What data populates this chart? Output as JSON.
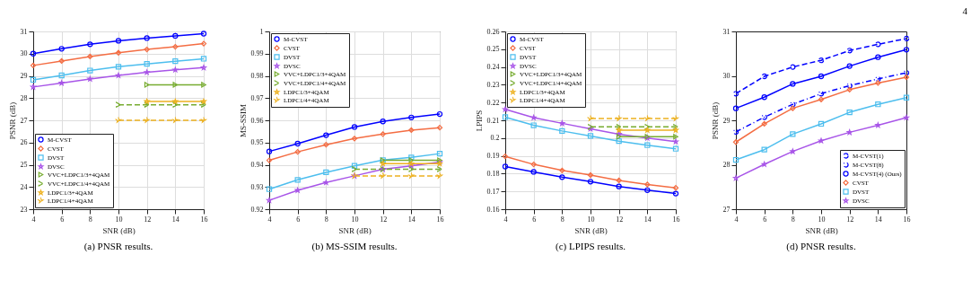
{
  "chart_data": [
    {
      "type": "line",
      "title": "(a) PNSR results.",
      "xlabel": "SNR (dB)",
      "ylabel": "PSNR (dB)",
      "x": [
        4,
        6,
        8,
        10,
        12,
        14,
        16
      ],
      "xlim": [
        4,
        16
      ],
      "xticks": [
        4,
        6,
        8,
        10,
        12,
        14,
        16
      ],
      "ylim": [
        23,
        31
      ],
      "yticks": [
        23,
        24,
        25,
        26,
        27,
        28,
        29,
        30,
        31
      ],
      "grid": true,
      "legend": "bottom left",
      "series": [
        {
          "name": "M-CVST",
          "color": "#0000ff",
          "marker": "circle",
          "line_style": "solid",
          "values": [
            30.0,
            30.22,
            30.42,
            30.58,
            30.7,
            30.8,
            30.9
          ]
        },
        {
          "name": "CVST",
          "color": "#f46d43",
          "marker": "diamond",
          "line_style": "solid",
          "values": [
            29.47,
            29.67,
            29.87,
            30.04,
            30.19,
            30.31,
            30.45
          ]
        },
        {
          "name": "DVST",
          "color": "#4dbeee",
          "marker": "square",
          "line_style": "solid",
          "values": [
            28.82,
            29.02,
            29.24,
            29.41,
            29.54,
            29.66,
            29.77
          ]
        },
        {
          "name": "DVSC",
          "color": "#a855e8",
          "marker": "star",
          "line_style": "solid",
          "values": [
            28.5,
            28.68,
            28.86,
            29.02,
            29.16,
            29.27,
            29.37
          ]
        },
        {
          "name": "VVC+LDPC1/3+4QAM",
          "color": "#77ac30",
          "marker": "triangle",
          "line_style": "solid",
          "values": [
            null,
            null,
            null,
            null,
            28.6,
            28.6,
            28.6
          ]
        },
        {
          "name": "VVC+LDPC1/4+4QAM",
          "color": "#77ac30",
          "marker": "triangle",
          "line_style": "dashed",
          "values": [
            null,
            null,
            null,
            27.7,
            27.7,
            27.7,
            27.7
          ]
        },
        {
          "name": "LDPC1/3+4QAM",
          "color": "#edb120",
          "marker": "star",
          "line_style": "solid",
          "values": [
            null,
            null,
            null,
            null,
            27.85,
            27.85,
            27.85
          ]
        },
        {
          "name": "LDPC1/4+4QAM",
          "color": "#edb120",
          "marker": "star",
          "line_style": "dashed",
          "values": [
            null,
            null,
            null,
            27.0,
            27.0,
            27.0,
            27.0
          ]
        }
      ]
    },
    {
      "type": "line",
      "title": "(b) MS-SSIM results.",
      "xlabel": "SNR (dB)",
      "ylabel": "MS-SSIM",
      "x": [
        4,
        6,
        8,
        10,
        12,
        14,
        16
      ],
      "xlim": [
        4,
        16
      ],
      "xticks": [
        4,
        6,
        8,
        10,
        12,
        14,
        16
      ],
      "ylim": [
        0.92,
        1
      ],
      "yticks": [
        0.92,
        0.93,
        0.94,
        0.95,
        0.96,
        0.97,
        0.98,
        0.99,
        1
      ],
      "grid": true,
      "legend": "top left",
      "series": [
        {
          "name": "M-CVST",
          "color": "#0000ff",
          "marker": "circle",
          "line_style": "solid",
          "values": [
            0.946,
            0.9495,
            0.9533,
            0.957,
            0.9595,
            0.9613,
            0.9628
          ]
        },
        {
          "name": "CVST",
          "color": "#f46d43",
          "marker": "diamond",
          "line_style": "solid",
          "values": [
            0.942,
            0.9458,
            0.949,
            0.9518,
            0.9538,
            0.9556,
            0.9567
          ]
        },
        {
          "name": "DVST",
          "color": "#4dbeee",
          "marker": "square",
          "line_style": "solid",
          "values": [
            0.929,
            0.9332,
            0.9366,
            0.9395,
            0.9421,
            0.9433,
            0.945
          ]
        },
        {
          "name": "DVSC",
          "color": "#a855e8",
          "marker": "star",
          "line_style": "solid",
          "values": [
            0.924,
            0.9285,
            0.932,
            0.935,
            0.938,
            0.9395,
            0.9412
          ]
        },
        {
          "name": "VVC+LDPC1/3+4QAM",
          "color": "#77ac30",
          "marker": "triangle",
          "line_style": "solid",
          "values": [
            null,
            null,
            null,
            null,
            0.942,
            0.942,
            0.942
          ]
        },
        {
          "name": "VVC+LDPC1/4+4QAM",
          "color": "#77ac30",
          "marker": "triangle",
          "line_style": "dashed",
          "values": [
            null,
            null,
            null,
            0.938,
            0.938,
            0.938,
            0.938
          ]
        },
        {
          "name": "LDPC1/3+4QAM",
          "color": "#edb120",
          "marker": "star",
          "line_style": "solid",
          "values": [
            null,
            null,
            null,
            null,
            0.9405,
            0.9405,
            0.9405
          ]
        },
        {
          "name": "LDPC1/4+4QAM",
          "color": "#edb120",
          "marker": "star",
          "line_style": "dashed",
          "values": [
            null,
            null,
            null,
            0.935,
            0.935,
            0.935,
            0.935
          ]
        }
      ]
    },
    {
      "type": "line",
      "title": "(c) LPIPS results.",
      "xlabel": "SNR (dB)",
      "ylabel": "LPIPS",
      "x": [
        4,
        6,
        8,
        10,
        12,
        14,
        16
      ],
      "xlim": [
        4,
        16
      ],
      "xticks": [
        4,
        6,
        8,
        10,
        12,
        14,
        16
      ],
      "ylim": [
        0.16,
        0.26
      ],
      "yticks": [
        0.16,
        0.17,
        0.18,
        0.19,
        0.2,
        0.21,
        0.22,
        0.23,
        0.24,
        0.25,
        0.26
      ],
      "grid": true,
      "legend": "top left",
      "series": [
        {
          "name": "M-CVST",
          "color": "#0000ff",
          "marker": "circle",
          "line_style": "solid",
          "values": [
            0.184,
            0.181,
            0.178,
            0.1755,
            0.1728,
            0.1707,
            0.1688
          ]
        },
        {
          "name": "CVST",
          "color": "#f46d43",
          "marker": "diamond",
          "line_style": "solid",
          "values": [
            0.1897,
            0.1852,
            0.1818,
            0.1792,
            0.1762,
            0.1739,
            0.172
          ]
        },
        {
          "name": "DVST",
          "color": "#4dbeee",
          "marker": "square",
          "line_style": "solid",
          "values": [
            0.2118,
            0.2072,
            0.204,
            0.2012,
            0.1983,
            0.196,
            0.194
          ]
        },
        {
          "name": "DVSC",
          "color": "#a855e8",
          "marker": "star",
          "line_style": "solid",
          "values": [
            0.2162,
            0.2115,
            0.2083,
            0.2052,
            0.2022,
            0.2,
            0.198
          ]
        },
        {
          "name": "VVC+LDPC1/3+4QAM",
          "color": "#77ac30",
          "marker": "triangle",
          "line_style": "solid",
          "values": [
            null,
            null,
            null,
            null,
            0.2008,
            0.2008,
            0.2008
          ]
        },
        {
          "name": "VVC+LDPC1/4+4QAM",
          "color": "#77ac30",
          "marker": "triangle",
          "line_style": "dashed",
          "values": [
            null,
            null,
            null,
            0.2063,
            0.2063,
            0.2063,
            0.2063
          ]
        },
        {
          "name": "LDPC1/3+4QAM",
          "color": "#edb120",
          "marker": "star",
          "line_style": "solid",
          "values": [
            null,
            null,
            null,
            null,
            0.2045,
            0.2045,
            0.2045
          ]
        },
        {
          "name": "LDPC1/4+4QAM",
          "color": "#edb120",
          "marker": "star",
          "line_style": "dashed",
          "values": [
            null,
            null,
            null,
            0.211,
            0.211,
            0.211,
            0.211
          ]
        }
      ]
    },
    {
      "type": "line",
      "title": "(d) PNSR results.",
      "xlabel": "SNR (dB)",
      "ylabel": "PSNR (dB)",
      "x": [
        4,
        6,
        8,
        10,
        12,
        14,
        16
      ],
      "xlim": [
        4,
        16
      ],
      "xticks": [
        4,
        6,
        8,
        10,
        12,
        14,
        16
      ],
      "ylim": [
        27,
        31
      ],
      "yticks": [
        27,
        28,
        29,
        30,
        31
      ],
      "grid": false,
      "legend": "bottom right",
      "annotations": [
        "4"
      ],
      "series": [
        {
          "name": "M-CVST(1)",
          "color": "#0000ff",
          "marker": "circle",
          "line_style": "dashed",
          "values": [
            29.6,
            29.99,
            30.2,
            30.35,
            30.57,
            30.71,
            30.84
          ]
        },
        {
          "name": "M-CVST(8)",
          "color": "#0000ff",
          "marker": "circle",
          "line_style": "dashdot",
          "values": [
            28.74,
            29.07,
            29.36,
            29.6,
            29.78,
            29.93,
            30.07
          ]
        },
        {
          "name": "M-CVST(4) (Ours)",
          "color": "#0000ff",
          "marker": "circle",
          "line_style": "solid",
          "values": [
            29.27,
            29.52,
            29.82,
            29.99,
            30.22,
            30.42,
            30.59
          ]
        },
        {
          "name": "CVST",
          "color": "#f46d43",
          "marker": "diamond",
          "line_style": "solid",
          "values": [
            28.51,
            28.92,
            29.27,
            29.47,
            29.69,
            29.84,
            29.97
          ]
        },
        {
          "name": "DVST",
          "color": "#4dbeee",
          "marker": "square",
          "line_style": "solid",
          "values": [
            28.11,
            28.34,
            28.69,
            28.92,
            29.18,
            29.36,
            29.51
          ]
        },
        {
          "name": "DVSC",
          "color": "#a855e8",
          "marker": "star",
          "line_style": "solid",
          "values": [
            27.7,
            28.01,
            28.3,
            28.54,
            28.73,
            28.89,
            29.06
          ]
        }
      ]
    }
  ]
}
